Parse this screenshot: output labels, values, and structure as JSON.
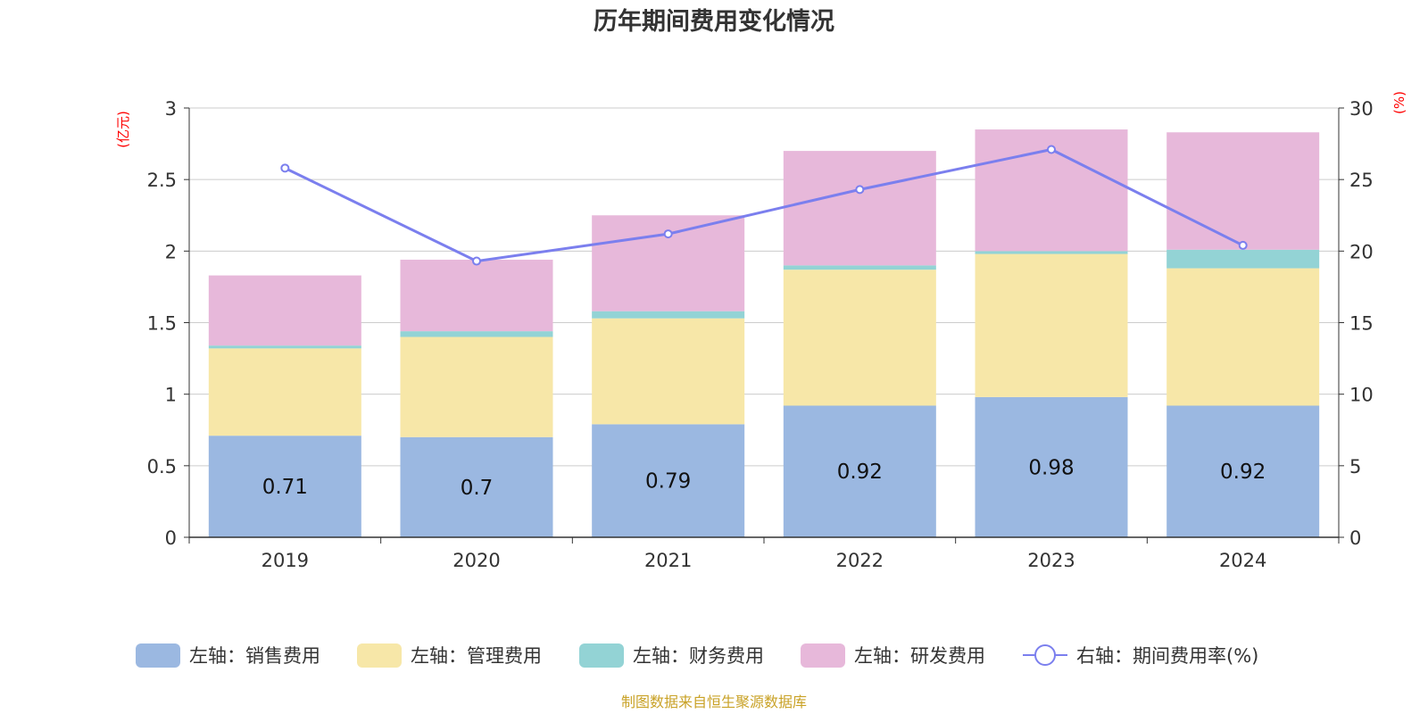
{
  "chart_data": {
    "type": "bar",
    "title": "历年期间费用变化情况",
    "categories": [
      "2019",
      "2020",
      "2021",
      "2022",
      "2023",
      "2024"
    ],
    "left_axis": {
      "unit": "(亿元)",
      "ylim": [
        0,
        3
      ],
      "ticks": [
        "0",
        "0.5",
        "1",
        "1.5",
        "2",
        "2.5",
        "3"
      ]
    },
    "right_axis": {
      "unit": "(%)",
      "ylim": [
        0,
        30
      ],
      "ticks": [
        "0",
        "5",
        "10",
        "15",
        "20",
        "25",
        "30"
      ]
    },
    "series": [
      {
        "name": "左轴：销售费用",
        "type": "bar",
        "stack": true,
        "color": "#9bb8e1",
        "values": [
          0.71,
          0.7,
          0.79,
          0.92,
          0.98,
          0.92
        ],
        "labels": [
          "0.71",
          "0.7",
          "0.79",
          "0.92",
          "0.98",
          "0.92"
        ]
      },
      {
        "name": "左轴：管理费用",
        "type": "bar",
        "stack": true,
        "color": "#f7e7a8",
        "values": [
          0.61,
          0.7,
          0.74,
          0.95,
          1.0,
          0.96
        ]
      },
      {
        "name": "左轴：财务费用",
        "type": "bar",
        "stack": true,
        "color": "#93d3d5",
        "values": [
          0.02,
          0.04,
          0.05,
          0.03,
          0.02,
          0.13
        ]
      },
      {
        "name": "左轴：研发费用",
        "type": "bar",
        "stack": true,
        "color": "#e7b8da",
        "values": [
          0.49,
          0.5,
          0.67,
          0.8,
          0.85,
          0.82
        ]
      },
      {
        "name": "右轴：期间费用率(%)",
        "type": "line",
        "axis": "right",
        "color": "#7b7fee",
        "values": [
          25.8,
          19.3,
          21.2,
          24.3,
          27.1,
          20.4
        ]
      }
    ],
    "grid": true,
    "legend": "bottom"
  },
  "source_text": "制图数据来自恒生聚源数据库"
}
